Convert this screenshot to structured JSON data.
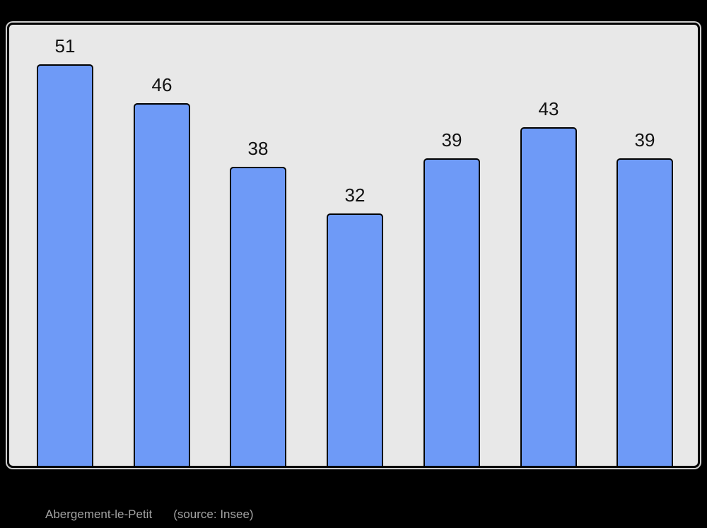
{
  "colors": {
    "page_bg": "#000000",
    "plot_bg": "#e8e8e8",
    "plot_border": "#000000",
    "plot_outer_edge": "#cfcfcf",
    "bar_fill": "#6e9af7",
    "bar_border": "#000000",
    "value_label": "#111111",
    "caption_text": "#a3a3a3"
  },
  "caption": {
    "title": "Abergement-le-Petit",
    "source": "(source: Insee)"
  },
  "chart_data": {
    "type": "bar",
    "values": [
      51,
      46,
      38,
      32,
      39,
      43,
      39
    ],
    "data_labels": [
      "51",
      "46",
      "38",
      "32",
      "39",
      "43",
      "39"
    ],
    "title": "",
    "xlabel": "",
    "ylabel": "",
    "ylim": [
      0,
      56
    ],
    "grid": false,
    "legend": false,
    "bar_count": 7
  }
}
